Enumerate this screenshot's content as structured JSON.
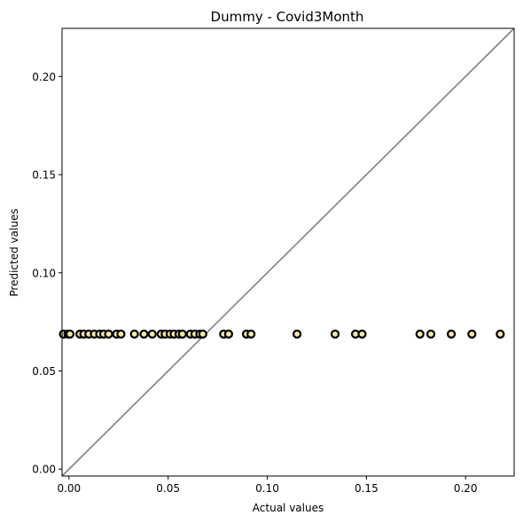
{
  "chart_data": {
    "type": "scatter",
    "title": "Dummy - Covid3Month",
    "xlabel": "Actual values",
    "ylabel": "Predicted values",
    "xlim": [
      -0.0035,
      0.2245
    ],
    "ylim": [
      -0.0035,
      0.2245
    ],
    "xticks": [
      0.0,
      0.05,
      0.1,
      0.15,
      0.2
    ],
    "yticks": [
      0.0,
      0.05,
      0.1,
      0.15,
      0.2
    ],
    "xtick_labels": [
      "0.00",
      "0.05",
      "0.10",
      "0.15",
      "0.20"
    ],
    "ytick_labels": [
      "0.00",
      "0.05",
      "0.10",
      "0.15",
      "0.20"
    ],
    "grid": false,
    "reference_line": "y = x",
    "reference_line_color": "#808080",
    "marker_fill": "#f3e8a5",
    "marker_edge": "#000000",
    "points": [
      {
        "x": -0.0028,
        "y": 0.0688
      },
      {
        "x": -0.0005,
        "y": 0.0688
      },
      {
        "x": 0.0005,
        "y": 0.0688
      },
      {
        "x": 0.0055,
        "y": 0.0688
      },
      {
        "x": 0.0075,
        "y": 0.0688
      },
      {
        "x": 0.01,
        "y": 0.0688
      },
      {
        "x": 0.0128,
        "y": 0.0688
      },
      {
        "x": 0.0155,
        "y": 0.0688
      },
      {
        "x": 0.0175,
        "y": 0.0688
      },
      {
        "x": 0.02,
        "y": 0.0688
      },
      {
        "x": 0.024,
        "y": 0.0688
      },
      {
        "x": 0.0262,
        "y": 0.0688
      },
      {
        "x": 0.033,
        "y": 0.0688
      },
      {
        "x": 0.0378,
        "y": 0.0688
      },
      {
        "x": 0.042,
        "y": 0.0688
      },
      {
        "x": 0.0465,
        "y": 0.0688
      },
      {
        "x": 0.0485,
        "y": 0.0688
      },
      {
        "x": 0.051,
        "y": 0.0688
      },
      {
        "x": 0.053,
        "y": 0.0688
      },
      {
        "x": 0.0555,
        "y": 0.0688
      },
      {
        "x": 0.0572,
        "y": 0.0688
      },
      {
        "x": 0.0612,
        "y": 0.0688
      },
      {
        "x": 0.0635,
        "y": 0.0688
      },
      {
        "x": 0.066,
        "y": 0.0688
      },
      {
        "x": 0.0675,
        "y": 0.0688
      },
      {
        "x": 0.078,
        "y": 0.0688
      },
      {
        "x": 0.0805,
        "y": 0.0688
      },
      {
        "x": 0.0895,
        "y": 0.0688
      },
      {
        "x": 0.0918,
        "y": 0.0688
      },
      {
        "x": 0.115,
        "y": 0.0688
      },
      {
        "x": 0.1342,
        "y": 0.0688
      },
      {
        "x": 0.1445,
        "y": 0.0688
      },
      {
        "x": 0.1478,
        "y": 0.0688
      },
      {
        "x": 0.177,
        "y": 0.0688
      },
      {
        "x": 0.1825,
        "y": 0.0688
      },
      {
        "x": 0.1928,
        "y": 0.0688
      },
      {
        "x": 0.2032,
        "y": 0.0688
      },
      {
        "x": 0.2175,
        "y": 0.0688
      }
    ]
  }
}
